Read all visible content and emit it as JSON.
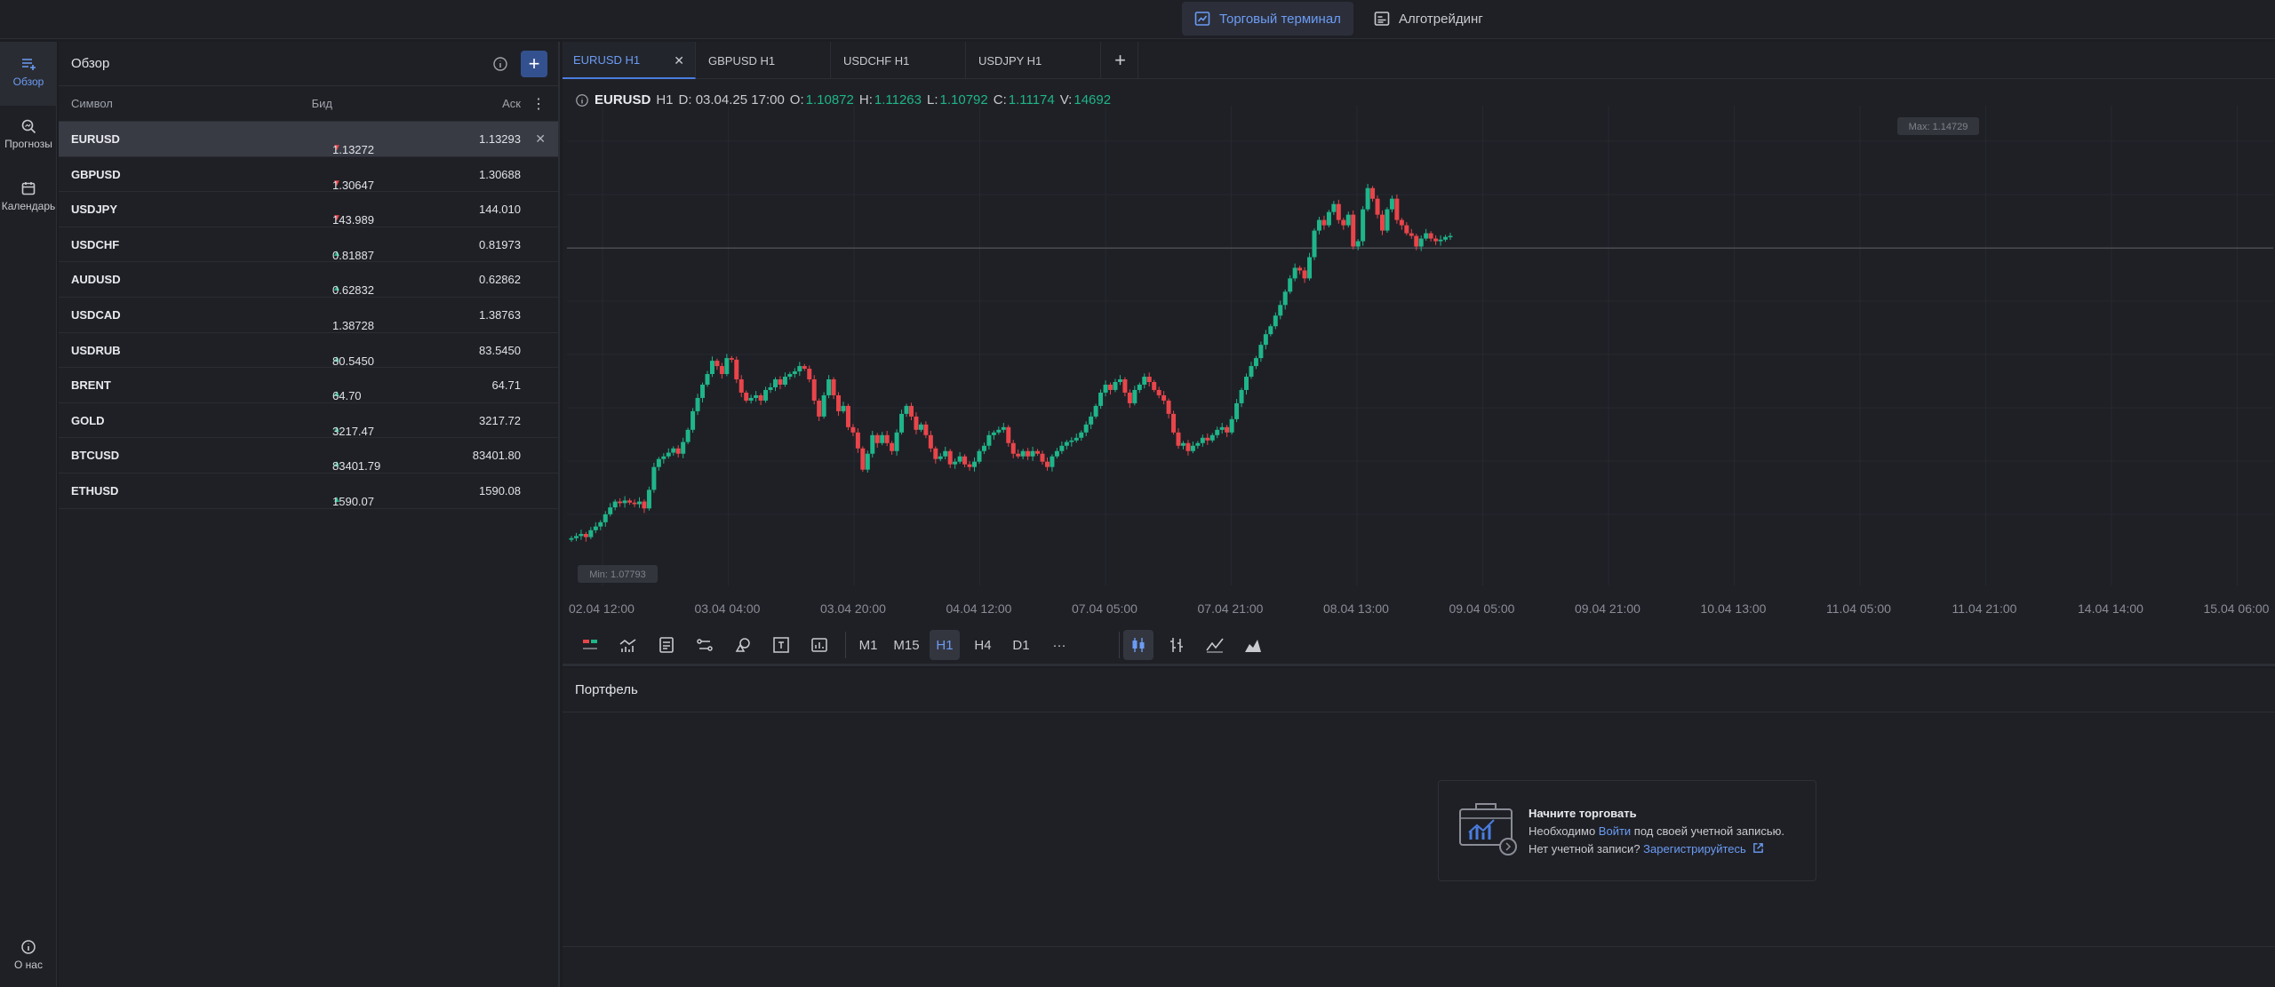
{
  "topbar": {
    "terminal_label": "Торговый терминал",
    "algo_label": "Алготрейдинг"
  },
  "leftnav": {
    "overview": "Обзор",
    "forecasts": "Прогнозы",
    "calendar": "Календарь",
    "about": "О нас"
  },
  "watchlist": {
    "title": "Обзор",
    "col_symbol": "Символ",
    "col_bid": "Бид",
    "col_ask": "Аск",
    "rows": [
      {
        "symbol": "EURUSD",
        "dir": "down",
        "bid": "1.13272",
        "ask": "1.13293"
      },
      {
        "symbol": "GBPUSD",
        "dir": "down",
        "bid": "1.30647",
        "ask": "1.30688"
      },
      {
        "symbol": "USDJPY",
        "dir": "down",
        "bid": "143.989",
        "ask": "144.010"
      },
      {
        "symbol": "USDCHF",
        "dir": "up",
        "bid": "0.81887",
        "ask": "0.81973"
      },
      {
        "symbol": "AUDUSD",
        "dir": "up",
        "bid": "0.62832",
        "ask": "0.62862"
      },
      {
        "symbol": "USDCAD",
        "dir": "none",
        "bid": "1.38728",
        "ask": "1.38763"
      },
      {
        "symbol": "USDRUB",
        "dir": "up",
        "bid": "80.5450",
        "ask": "83.5450"
      },
      {
        "symbol": "BRENT",
        "dir": "up",
        "bid": "64.70",
        "ask": "64.71"
      },
      {
        "symbol": "GOLD",
        "dir": "up",
        "bid": "3217.47",
        "ask": "3217.72"
      },
      {
        "symbol": "BTCUSD",
        "dir": "up",
        "bid": "83401.79",
        "ask": "83401.80"
      },
      {
        "symbol": "ETHUSD",
        "dir": "up",
        "bid": "1590.07",
        "ask": "1590.08"
      }
    ]
  },
  "tabs": [
    {
      "label": "EURUSD H1"
    },
    {
      "label": "GBPUSD H1"
    },
    {
      "label": "USDCHF H1"
    },
    {
      "label": "USDJPY H1"
    }
  ],
  "ohlc": {
    "symbol": "EURUSD",
    "tf": "H1",
    "date": "D: 03.04.25 17:00",
    "o_label": "O:",
    "o": "1.10872",
    "h_label": "H:",
    "h": "1.11263",
    "l_label": "L:",
    "l": "1.10792",
    "c_label": "C:",
    "c": "1.11174",
    "v_label": "V:",
    "v": "14692"
  },
  "chart_data": {
    "type": "candlestick",
    "max_label": "Max: 1.14729",
    "min_label": "Min: 1.07793",
    "ylim": [
      1.0779,
      1.1473
    ],
    "x_ticks": [
      "02.04 12:00",
      "03.04 04:00",
      "03.04 20:00",
      "04.04 12:00",
      "07.04 05:00",
      "07.04 21:00",
      "08.04 13:00",
      "09.04 05:00",
      "09.04 21:00",
      "10.04 13:00",
      "11.04 05:00",
      "11.04 21:00",
      "14.04 14:00",
      "15.04 06:00"
    ],
    "current_price": 1.1327,
    "closes": [
      1.0781,
      1.0785,
      1.0789,
      1.0783,
      1.0796,
      1.0803,
      1.0811,
      1.0826,
      1.0839,
      1.085,
      1.0847,
      1.0852,
      1.0848,
      1.0845,
      1.085,
      1.0837,
      1.0872,
      1.0915,
      1.093,
      1.0935,
      1.0942,
      1.095,
      1.094,
      1.0962,
      1.0985,
      1.102,
      1.1045,
      1.107,
      1.109,
      1.1115,
      1.1105,
      1.109,
      1.112,
      1.1117,
      1.108,
      1.1055,
      1.104,
      1.1045,
      1.105,
      1.104,
      1.106,
      1.1065,
      1.108,
      1.107,
      1.1085,
      1.109,
      1.1095,
      1.1105,
      1.11,
      1.108,
      1.104,
      1.101,
      1.105,
      1.108,
      1.105,
      1.102,
      1.103,
      1.099,
      1.098,
      1.095,
      1.091,
      1.094,
      1.0975,
      1.096,
      1.0975,
      1.096,
      1.0945,
      1.098,
      1.1015,
      1.103,
      1.101,
      1.0985,
      1.0995,
      1.0975,
      1.095,
      1.093,
      1.0935,
      1.0945,
      1.092,
      1.0925,
      1.0935,
      1.092,
      1.0915,
      1.0925,
      1.0945,
      1.0955,
      1.0975,
      1.098,
      1.0985,
      1.099,
      1.096,
      1.094,
      1.0935,
      1.0945,
      1.0935,
      1.0945,
      1.094,
      1.0925,
      1.0915,
      1.0935,
      1.0945,
      1.0955,
      1.0962,
      1.0965,
      1.097,
      1.098,
      1.0995,
      1.101,
      1.103,
      1.1055,
      1.107,
      1.106,
      1.1075,
      1.108,
      1.1055,
      1.1035,
      1.106,
      1.107,
      1.1085,
      1.1075,
      1.106,
      1.105,
      1.104,
      1.1015,
      1.098,
      1.0955,
      1.096,
      1.0945,
      1.0955,
      1.096,
      1.097,
      1.0965,
      1.0975,
      1.0985,
      1.099,
      1.098,
      1.1005,
      1.1035,
      1.106,
      1.1085,
      1.1105,
      1.112,
      1.1145,
      1.1165,
      1.118,
      1.12,
      1.122,
      1.1245,
      1.127,
      1.129,
      1.1285,
      1.127,
      1.131,
      1.136,
      1.138,
      1.137,
      1.1395,
      1.141,
      1.138,
      1.137,
      1.139,
      1.133,
      1.134,
      1.14,
      1.144,
      1.142,
      1.139,
      1.136,
      1.14,
      1.142,
      1.138,
      1.137,
      1.1355,
      1.135,
      1.133,
      1.1345,
      1.1355,
      1.1345,
      1.134,
      1.1343,
      1.1348,
      1.135
    ]
  },
  "toolbar": {
    "tf_m1": "M1",
    "tf_m15": "M15",
    "tf_h1": "H1",
    "tf_h4": "H4",
    "tf_d1": "D1",
    "more": "···"
  },
  "portfolio": {
    "title": "Портфель",
    "empty_title": "Начните торговать",
    "line1_pre": "Необходимо ",
    "line1_link": "Войти",
    "line1_post": " под своей учетной записью.",
    "line2_pre": "Нет учетной записи? ",
    "line2_link": "Зарегистрируйтесь"
  }
}
